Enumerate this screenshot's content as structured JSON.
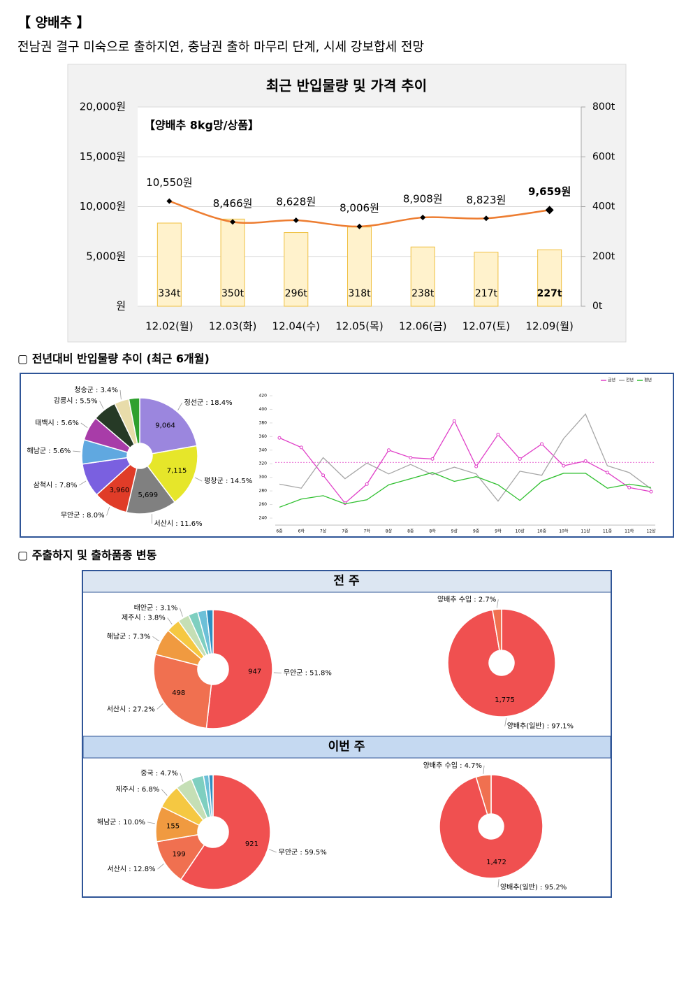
{
  "header": {
    "title": "【 양배추 】",
    "summary": "전남권 결구 미숙으로 출하지연, 충남권 출하 마무리 단계, 시세 강보합세 전망"
  },
  "sections": {
    "volume_trend": "▢ 전년대비 반입물량 추이 (최근 6개월)",
    "shipping": "▢ 주출하지 및 출하품종 변동",
    "prev_week": "전 주",
    "this_week": "이번 주"
  },
  "chart_data": [
    {
      "type": "combo",
      "title": "최근 반입물량 및 가격 추이",
      "annotation": "【양배추 8kg망/상품】",
      "categories": [
        "12.02(월)",
        "12.03(화)",
        "12.04(수)",
        "12.05(목)",
        "12.06(금)",
        "12.07(토)",
        "12.09(월)"
      ],
      "series": [
        {
          "type": "bar",
          "axis": "y2",
          "color": "#fff2cc",
          "values": [
            334,
            350,
            296,
            318,
            238,
            217,
            227
          ],
          "value_labels": [
            "334t",
            "350t",
            "296t",
            "318t",
            "238t",
            "217t",
            "227t"
          ]
        },
        {
          "type": "line",
          "color": "#ed7d31",
          "values": [
            10550,
            8466,
            8628,
            8006,
            8908,
            8823,
            9659
          ],
          "value_labels": [
            "10,550원",
            "8,466원",
            "8,628원",
            "8,006원",
            "8,908원",
            "8,823원",
            "9,659원"
          ]
        }
      ],
      "ylim": [
        0,
        20000
      ],
      "yticks": [
        {
          "value": 0,
          "label": "원"
        },
        {
          "value": 5000,
          "label": "5,000원"
        },
        {
          "value": 10000,
          "label": "10,000원"
        },
        {
          "value": 15000,
          "label": "15,000원"
        },
        {
          "value": 20000,
          "label": "20,000원"
        }
      ],
      "y2lim": [
        0,
        800
      ],
      "y2ticks": [
        {
          "value": 0,
          "label": "0t"
        },
        {
          "value": 200,
          "label": "200t"
        },
        {
          "value": 400,
          "label": "400t"
        },
        {
          "value": 600,
          "label": "600t"
        },
        {
          "value": 800,
          "label": "800t"
        }
      ],
      "grid": true
    },
    {
      "type": "pie",
      "labels": [
        "정선군 : 18.4%",
        "평창군 : 14.5%",
        "서산시 : 11.6%",
        "무안군 : 8.0%",
        "삼척시 : 7.8%",
        "해남군 : 5.6%",
        "태백시 : 5.6%",
        "강릉시 : 5.5%",
        "청송군 : 3.4%",
        null
      ],
      "values": [
        18.4,
        14.5,
        11.6,
        8.0,
        7.8,
        5.6,
        5.6,
        5.5,
        3.4,
        2.5
      ],
      "inner_labels": [
        "9,064",
        "7,115",
        "5,699",
        "3,960",
        null,
        null,
        null,
        null,
        null,
        null
      ],
      "colors": [
        "#9b86de",
        "#e6e62a",
        "#808080",
        "#e03c28",
        "#7a60e0",
        "#60a8e0",
        "#a83ca8",
        "#263a26",
        "#e8dcaa",
        "#2ea02e"
      ]
    },
    {
      "type": "line",
      "categories": [
        "6중",
        "6하",
        "7상",
        "7중",
        "7하",
        "8상",
        "8중",
        "8하",
        "9상",
        "9중",
        "9하",
        "10상",
        "10중",
        "10하",
        "11상",
        "11중",
        "11하",
        "12상"
      ],
      "series": [
        {
          "name": "금년",
          "color": "#e040c8",
          "values": [
            358,
            344,
            303,
            262,
            290,
            340,
            329,
            327,
            383,
            316,
            363,
            327,
            349,
            317,
            324,
            307,
            285,
            279
          ]
        },
        {
          "name": "전년",
          "color": "#a6a6a6",
          "values": [
            290,
            284,
            329,
            298,
            321,
            305,
            319,
            304,
            315,
            305,
            265,
            309,
            303,
            357,
            393,
            317,
            307,
            283
          ]
        },
        {
          "name": "평년",
          "color": "#30c030",
          "values": [
            256,
            268,
            273,
            261,
            267,
            289,
            298,
            307,
            294,
            301,
            289,
            266,
            294,
            306,
            306,
            284,
            290,
            285
          ]
        }
      ],
      "ylim": [
        240,
        420
      ],
      "yticks": [
        240,
        260,
        280,
        300,
        320,
        340,
        360,
        380,
        400,
        420
      ],
      "reference_line": 322,
      "legend": "top-right"
    },
    {
      "type": "pie",
      "labels": [
        "무안군 : 51.8%",
        "서산시 : 27.2%",
        "해남군 : 7.3%",
        "제주시 : 3.8%",
        "태안군 : 3.1%",
        null,
        null,
        null
      ],
      "values": [
        51.8,
        27.2,
        7.3,
        3.8,
        3.1,
        2.6,
        2.4,
        1.8
      ],
      "inner_labels": [
        "947",
        "498",
        null,
        null,
        null,
        null,
        null,
        null
      ],
      "colors": [
        "#f05050",
        "#f07050",
        "#f09a40",
        "#f5c842",
        "#c5dfb5",
        "#7ecfc0",
        "#6cc0d8",
        "#2f8fc0"
      ]
    },
    {
      "type": "pie",
      "labels": [
        "양배추(일반) : 97.1%",
        "양배추 수입 : 2.7%"
      ],
      "values": [
        97.1,
        2.7
      ],
      "inner_labels": [
        "1,775",
        null
      ],
      "colors": [
        "#f05050",
        "#f07050"
      ]
    },
    {
      "type": "pie",
      "labels": [
        "무안군 : 59.5%",
        "서산시 : 12.8%",
        "해남군 : 10.0%",
        "제주시 : 6.8%",
        "중국 : 4.7%",
        null,
        null,
        null
      ],
      "values": [
        59.5,
        12.8,
        10.0,
        6.8,
        4.7,
        3.5,
        1.5,
        1.2
      ],
      "inner_labels": [
        "921",
        "199",
        "155",
        null,
        null,
        null,
        null,
        null
      ],
      "colors": [
        "#f05050",
        "#f07050",
        "#f09a40",
        "#f5c842",
        "#c5dfb5",
        "#7ecfc0",
        "#6cc0d8",
        "#2f8fc0"
      ]
    },
    {
      "type": "pie",
      "labels": [
        "양배추(일반) : 95.2%",
        "양배추 수입 : 4.7%"
      ],
      "values": [
        95.2,
        4.7
      ],
      "inner_labels": [
        "1,472",
        null
      ],
      "colors": [
        "#f05050",
        "#f07050"
      ]
    }
  ]
}
